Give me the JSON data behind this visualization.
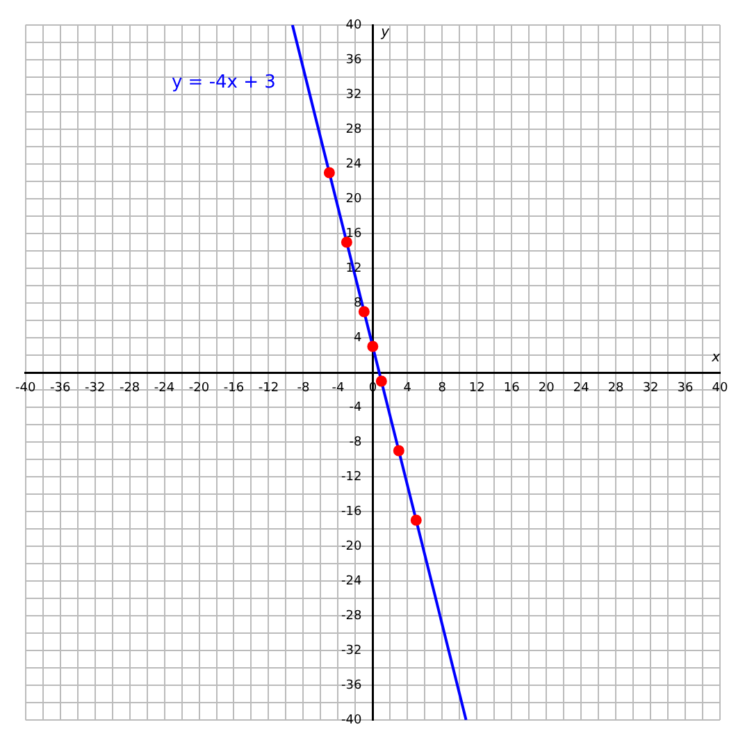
{
  "chart_data": {
    "type": "line",
    "xlabel": "x",
    "ylabel": "y",
    "series": [
      {
        "type": "line",
        "name": "y = -4x + 3",
        "color": "#0000ff",
        "x": [
          -9.25,
          10.75
        ],
        "values": [
          40,
          -40
        ],
        "marker": "none"
      },
      {
        "type": "scatter",
        "color": "#ff0000",
        "x": [
          -5,
          -3,
          -1,
          0,
          1,
          3,
          5
        ],
        "values": [
          23,
          15,
          7,
          3,
          -1,
          -9,
          -17
        ],
        "marker": "circle"
      }
    ],
    "xlim": [
      -40,
      40
    ],
    "ylim": [
      -40,
      40
    ],
    "xticks": [
      -40,
      {
        "value": -38,
        "label": null
      },
      -36,
      {
        "value": -34,
        "label": null
      },
      -32,
      {
        "value": -30,
        "label": null
      },
      -28,
      {
        "value": -26,
        "label": null
      },
      -24,
      {
        "value": -22,
        "label": null
      },
      -20,
      {
        "value": -18,
        "label": null
      },
      -16,
      {
        "value": -14,
        "label": null
      },
      -12,
      {
        "value": -10,
        "label": null
      },
      -8,
      {
        "value": -6,
        "label": null
      },
      -4,
      {
        "value": -2,
        "label": null
      },
      0,
      {
        "value": 2,
        "label": null
      },
      4,
      {
        "value": 6,
        "label": null
      },
      8,
      {
        "value": 10,
        "label": null
      },
      12,
      {
        "value": 14,
        "label": null
      },
      16,
      {
        "value": 18,
        "label": null
      },
      20,
      {
        "value": 22,
        "label": null
      },
      24,
      {
        "value": 26,
        "label": null
      },
      28,
      {
        "value": 30,
        "label": null
      },
      32,
      {
        "value": 34,
        "label": null
      },
      36,
      {
        "value": 38,
        "label": null
      },
      40
    ],
    "yticks": [
      -40,
      {
        "value": -38,
        "label": null
      },
      -36,
      {
        "value": -34,
        "label": null
      },
      -32,
      {
        "value": -30,
        "label": null
      },
      -28,
      {
        "value": -26,
        "label": null
      },
      -24,
      {
        "value": -22,
        "label": null
      },
      -20,
      {
        "value": -18,
        "label": null
      },
      -16,
      {
        "value": -14,
        "label": null
      },
      -12,
      {
        "value": -10,
        "label": null
      },
      -8,
      {
        "value": -6,
        "label": null
      },
      -4,
      {
        "value": -2,
        "label": null
      },
      {
        "value": 0,
        "label": null
      },
      {
        "value": 2,
        "label": null
      },
      4,
      {
        "value": 6,
        "label": null
      },
      8,
      {
        "value": 10,
        "label": null
      },
      12,
      {
        "value": 14,
        "label": null
      },
      16,
      {
        "value": 18,
        "label": null
      },
      20,
      {
        "value": 22,
        "label": null
      },
      24,
      {
        "value": 26,
        "label": null
      },
      28,
      {
        "value": 30,
        "label": null
      },
      32,
      {
        "value": 34,
        "label": null
      },
      36,
      {
        "value": 38,
        "label": null
      },
      40
    ],
    "grid": true
  }
}
